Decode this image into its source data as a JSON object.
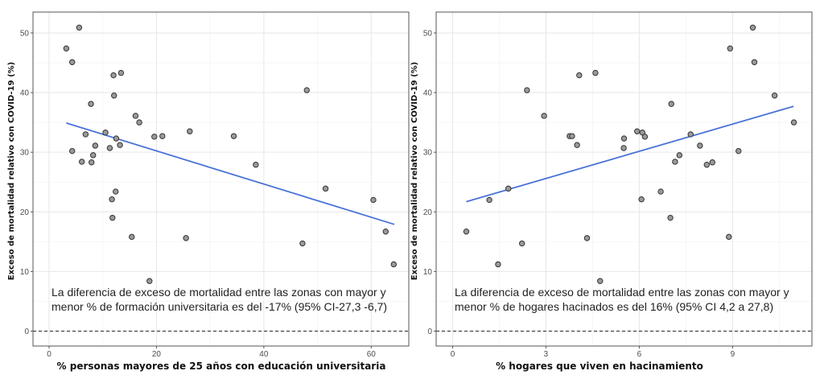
{
  "chart_data": [
    {
      "type": "scatter",
      "xlabel": "% personas mayores de 25 años con educación universitaria",
      "ylabel": "Exceso de mortalidad relativo con COVID-19 (%)",
      "xlim": [
        -3,
        67
      ],
      "ylim": [
        -2.5,
        53.5
      ],
      "xticks": [
        0,
        20,
        40,
        60
      ],
      "yticks": [
        0,
        10,
        20,
        30,
        40,
        50
      ],
      "grid": true,
      "reference_line_y": 0,
      "annotation": [
        "La diferencia de exceso de mortalidad entre las zonas con mayor y",
        "menor % de formación universitaria es del -17% (95% CI-27,3 -6,7)"
      ],
      "fit_line": {
        "x": [
          3.2,
          64.3
        ],
        "y": [
          34.9,
          17.9
        ]
      },
      "colors": {
        "point_fill": "#9a9a9a",
        "point_stroke": "#333333",
        "fit": "#4a72d8"
      },
      "points": [
        [
          3.2,
          47.4
        ],
        [
          5.6,
          50.9
        ],
        [
          4.3,
          45.1
        ],
        [
          13.4,
          43.3
        ],
        [
          12.0,
          42.9
        ],
        [
          48.0,
          40.4
        ],
        [
          12.1,
          39.5
        ],
        [
          7.8,
          38.1
        ],
        [
          16.1,
          36.1
        ],
        [
          16.8,
          35.0
        ],
        [
          26.2,
          33.5
        ],
        [
          6.8,
          33.0
        ],
        [
          10.5,
          33.3
        ],
        [
          12.5,
          32.3
        ],
        [
          19.6,
          32.6
        ],
        [
          21.1,
          32.7
        ],
        [
          34.4,
          32.7
        ],
        [
          8.6,
          31.1
        ],
        [
          13.2,
          31.2
        ],
        [
          11.3,
          30.7
        ],
        [
          4.3,
          30.2
        ],
        [
          8.2,
          29.5
        ],
        [
          6.1,
          28.4
        ],
        [
          7.9,
          28.3
        ],
        [
          38.5,
          27.9
        ],
        [
          51.5,
          23.9
        ],
        [
          12.4,
          23.4
        ],
        [
          11.7,
          22.1
        ],
        [
          60.4,
          22.0
        ],
        [
          11.8,
          19.0
        ],
        [
          15.4,
          15.8
        ],
        [
          25.5,
          15.6
        ],
        [
          47.2,
          14.7
        ],
        [
          62.7,
          16.7
        ],
        [
          64.2,
          11.2
        ],
        [
          18.7,
          8.4
        ]
      ]
    },
    {
      "type": "scatter",
      "xlabel": "% hogares que viven en hacinamiento",
      "ylabel": "Exceso de mortalidad relativo con COVID-19 (%)",
      "xlim": [
        -0.53,
        11.55
      ],
      "ylim": [
        -2.5,
        53.5
      ],
      "xticks": [
        0,
        3,
        6,
        9
      ],
      "yticks": [
        0,
        10,
        20,
        30,
        40,
        50
      ],
      "grid": true,
      "reference_line_y": 0,
      "annotation": [
        "La diferencia de exceso de mortalidad entre las zonas con mayor y",
        "menor % de hogares hacinados es del 16% (95% CI 4,2 a 27,8)"
      ],
      "fit_line": {
        "x": [
          0.44,
          10.96
        ],
        "y": [
          21.7,
          37.7
        ]
      },
      "colors": {
        "point_fill": "#9a9a9a",
        "point_stroke": "#333333",
        "fit": "#4a72d8"
      },
      "points": [
        [
          0.44,
          16.7
        ],
        [
          1.18,
          22.0
        ],
        [
          1.46,
          11.2
        ],
        [
          1.79,
          23.9
        ],
        [
          2.23,
          14.7
        ],
        [
          2.39,
          40.4
        ],
        [
          2.94,
          36.1
        ],
        [
          3.76,
          32.7
        ],
        [
          3.84,
          32.7
        ],
        [
          4.0,
          31.2
        ],
        [
          4.07,
          42.9
        ],
        [
          4.32,
          15.6
        ],
        [
          4.59,
          43.3
        ],
        [
          4.74,
          8.4
        ],
        [
          5.5,
          30.7
        ],
        [
          5.51,
          32.3
        ],
        [
          5.93,
          33.5
        ],
        [
          6.07,
          22.1
        ],
        [
          6.1,
          33.3
        ],
        [
          6.18,
          32.6
        ],
        [
          6.69,
          23.4
        ],
        [
          7.0,
          19.0
        ],
        [
          7.03,
          38.1
        ],
        [
          7.15,
          28.4
        ],
        [
          7.29,
          29.5
        ],
        [
          7.65,
          33.0
        ],
        [
          7.95,
          31.1
        ],
        [
          8.17,
          27.9
        ],
        [
          8.35,
          28.3
        ],
        [
          8.88,
          15.8
        ],
        [
          8.92,
          47.4
        ],
        [
          9.19,
          30.2
        ],
        [
          9.65,
          50.9
        ],
        [
          9.7,
          45.1
        ],
        [
          10.35,
          39.5
        ],
        [
          10.97,
          35.0
        ]
      ]
    }
  ]
}
